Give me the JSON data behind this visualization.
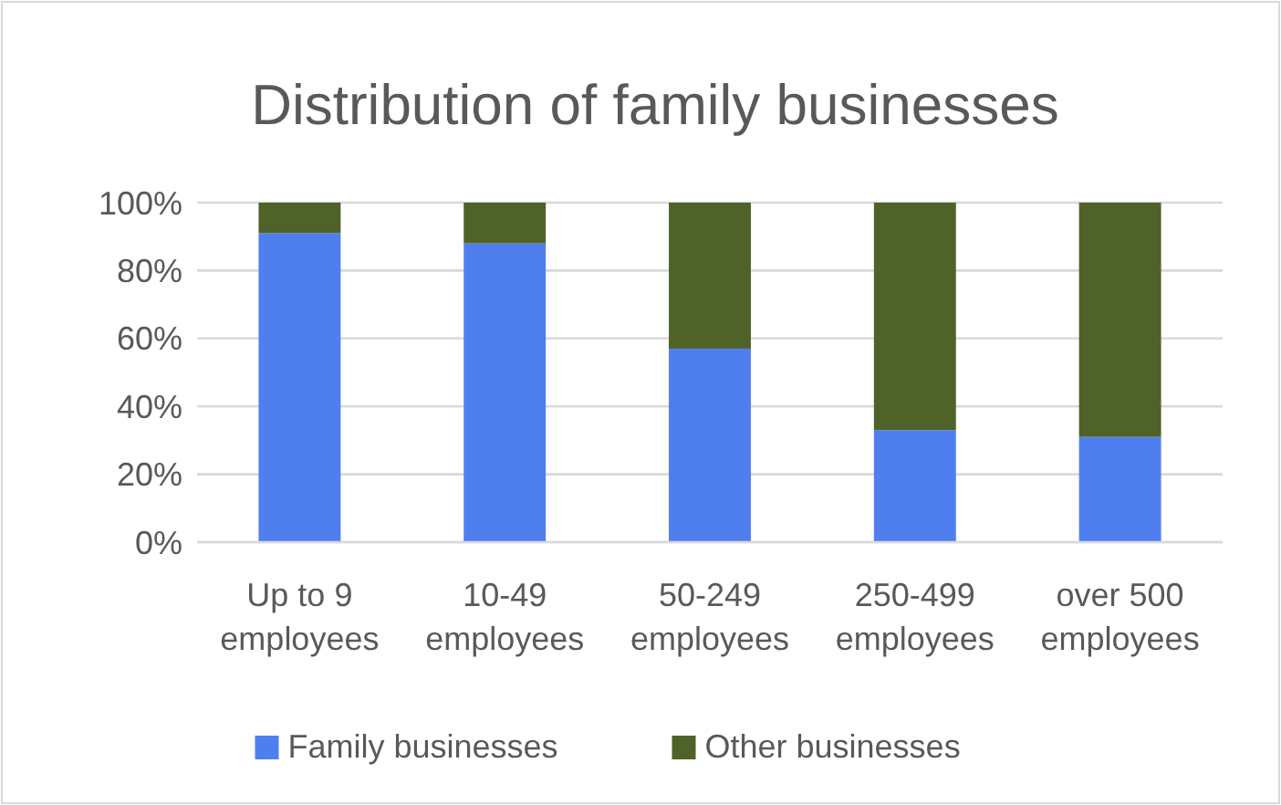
{
  "chart_data": {
    "type": "bar",
    "title": "Distribution of family businesses",
    "categories": [
      "Up to 9 employees",
      "10-49 employees",
      "50-249 employees",
      "250-499 employees",
      "over 500 employees"
    ],
    "series": [
      {
        "name": "Family businesses",
        "color": "#4f7fef",
        "values": [
          91,
          88,
          57,
          33,
          31
        ]
      },
      {
        "name": "Other businesses",
        "color": "#4f6228",
        "values": [
          9,
          12,
          43,
          67,
          69
        ]
      }
    ],
    "stacked": true,
    "ylim": [
      0,
      100
    ],
    "yticks": [
      {
        "value": 0,
        "label": "0%"
      },
      {
        "value": 20,
        "label": "20%"
      },
      {
        "value": 40,
        "label": "40%"
      },
      {
        "value": 60,
        "label": "60%"
      },
      {
        "value": 80,
        "label": "80%"
      },
      {
        "value": 100,
        "label": "100%"
      }
    ],
    "grid": "y",
    "legend": "bottom"
  }
}
